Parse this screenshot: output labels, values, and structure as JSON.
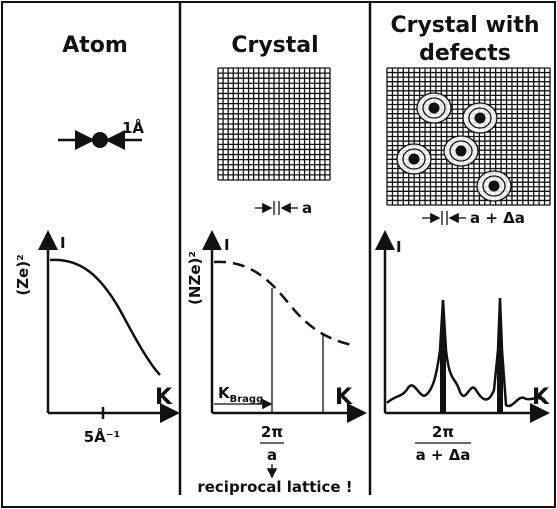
{
  "panels": [
    {
      "title": "Atom",
      "size_label": "1Å",
      "y_label": "(Ze)²",
      "intensity_label": "I",
      "x_label": "K",
      "tick_label": "5Å⁻¹"
    },
    {
      "title": "Crystal",
      "spacing_label": "a",
      "y_label": "(NZe)²",
      "intensity_label": "I",
      "x_label": "K",
      "bragg_label": "K",
      "bragg_subscript": "Bragg",
      "peak_numerator": "2π",
      "peak_denominator": "a",
      "note": "reciprocal lattice !"
    },
    {
      "title_lines": [
        "Crystal with",
        "defects"
      ],
      "spacing_label": "a + Δa",
      "intensity_label": "I",
      "x_label": "K",
      "peak_numerator": "2π",
      "peak_denominator": "a + Δa"
    }
  ]
}
